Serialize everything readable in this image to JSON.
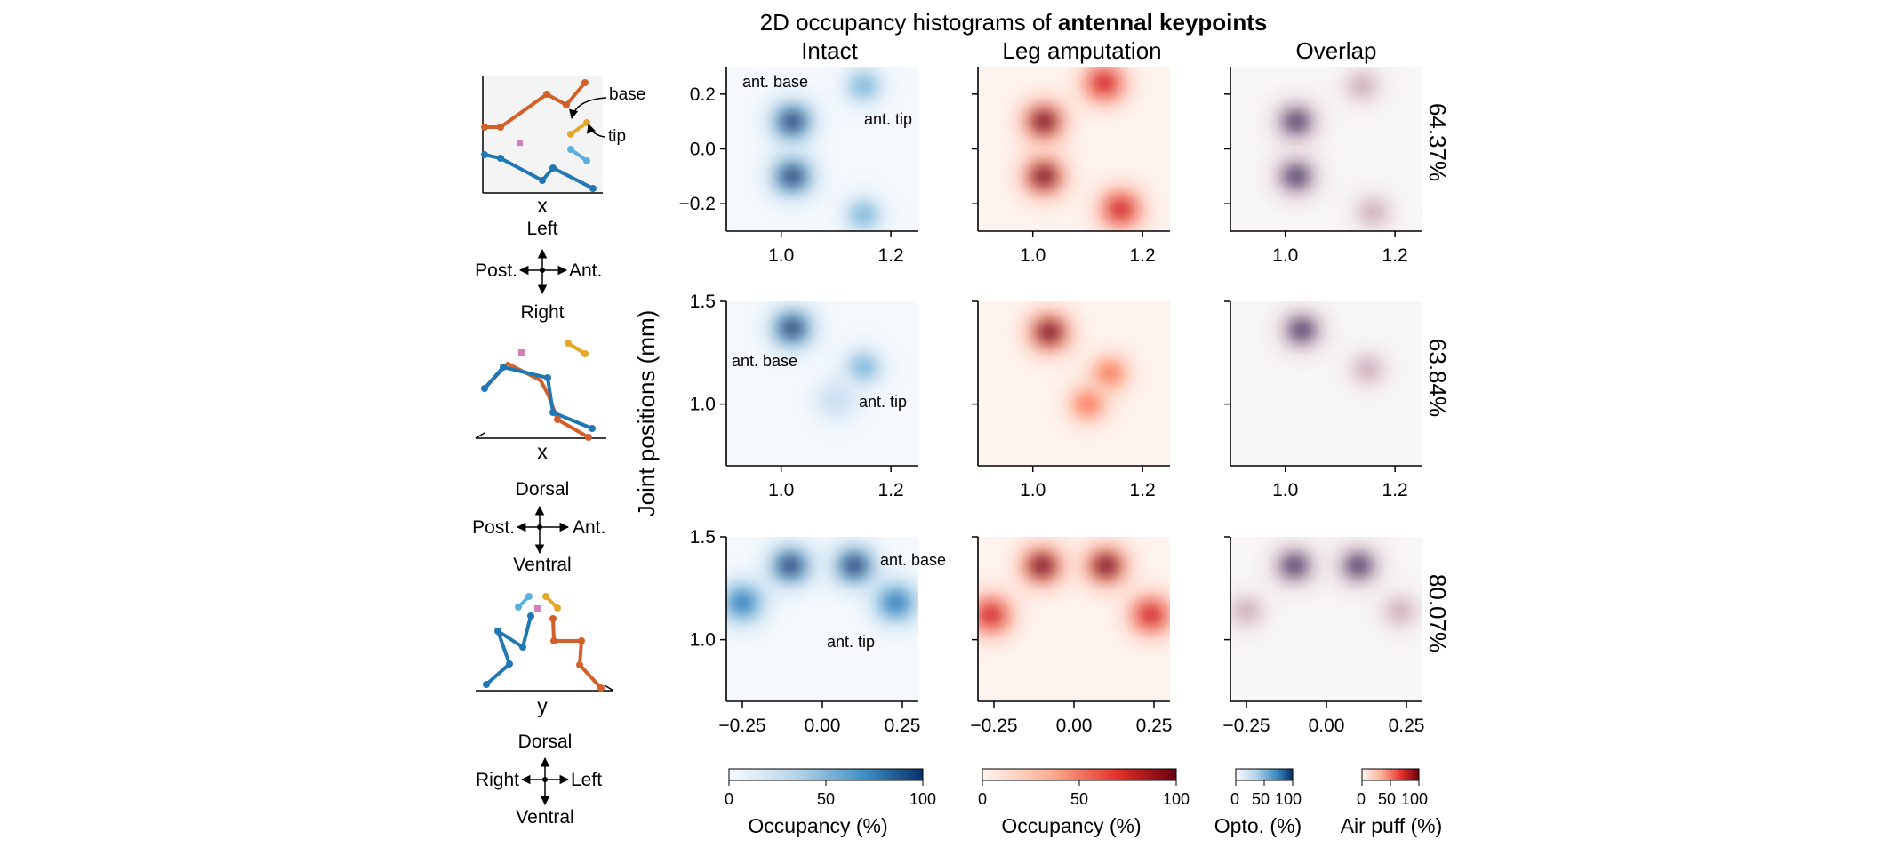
{
  "title": {
    "prefix": "2D occupancy histograms of ",
    "bold": "antennal keypoints"
  },
  "column_titles": [
    "Intact",
    "Leg amputation",
    "Overlap"
  ],
  "ylabel": "Joint positions (mm)",
  "row_percents": [
    "64.37%",
    "63.84%",
    "80.07%"
  ],
  "colorbars": [
    {
      "label": "Occupancy (%)",
      "ticks": [
        "0",
        "50",
        "100"
      ],
      "cmap": "blue"
    },
    {
      "label": "Occupancy (%)",
      "ticks": [
        "0",
        "50",
        "100"
      ],
      "cmap": "red"
    },
    {
      "label": "Opto. (%)",
      "ticks": [
        "0",
        "50",
        "100"
      ],
      "cmap": "blue"
    },
    {
      "label": "Air puff (%)",
      "ticks": [
        "0",
        "50",
        "100"
      ],
      "cmap": "red"
    }
  ],
  "annotations": {
    "row1": [
      "ant. base",
      "ant. tip"
    ],
    "row2": [
      "ant. base",
      "ant. tip"
    ],
    "row3": [
      "ant. base",
      "ant. tip"
    ]
  },
  "schematics": [
    {
      "axis_label": "x",
      "labels": {
        "base": "base",
        "tip": "tip"
      },
      "compass": {
        "top": "Left",
        "bottom": "Right",
        "left": "Post.",
        "right": "Ant."
      }
    },
    {
      "axis_label": "x",
      "compass": {
        "top": "Dorsal",
        "bottom": "Ventral",
        "left": "Post.",
        "right": "Ant."
      }
    },
    {
      "axis_label": "y",
      "compass": {
        "top": "Dorsal",
        "bottom": "Ventral",
        "left": "Right",
        "right": "Left"
      }
    }
  ],
  "colors": {
    "blue": "#1f77b4",
    "orange": "#d2602b",
    "light_blue": "#5ab1e0",
    "gold": "#e6a82a",
    "pink": "#d47fb8",
    "panel_bg": "#f4f4f4"
  },
  "chart_data": [
    {
      "type": "heatmap",
      "name": "Intact, row 1",
      "xlim": [
        0.9,
        1.25
      ],
      "ylim": [
        -0.3,
        0.3
      ],
      "xticks": [
        "1.0",
        "1.2"
      ],
      "yticks": [
        "0.2",
        "0.0",
        "−0.2"
      ],
      "cmap": "Blues",
      "blobs": [
        {
          "x": 1.02,
          "y": 0.1,
          "value": 100
        },
        {
          "x": 1.02,
          "y": -0.1,
          "value": 100
        },
        {
          "x": 1.15,
          "y": 0.23,
          "value": 45
        },
        {
          "x": 1.15,
          "y": -0.24,
          "value": 45
        }
      ]
    },
    {
      "type": "heatmap",
      "name": "Leg amputation, row 1",
      "xlim": [
        0.9,
        1.25
      ],
      "ylim": [
        -0.3,
        0.3
      ],
      "xticks": [
        "1.0",
        "1.2"
      ],
      "cmap": "Reds",
      "blobs": [
        {
          "x": 1.02,
          "y": 0.1,
          "value": 100
        },
        {
          "x": 1.02,
          "y": -0.1,
          "value": 100
        },
        {
          "x": 1.13,
          "y": 0.24,
          "value": 75
        },
        {
          "x": 1.16,
          "y": -0.22,
          "value": 75
        }
      ]
    },
    {
      "type": "heatmap",
      "name": "Overlap, row 1",
      "xlim": [
        0.9,
        1.25
      ],
      "ylim": [
        -0.3,
        0.3
      ],
      "xticks": [
        "1.0",
        "1.2"
      ],
      "percent": "64.37%",
      "blobs": [
        {
          "x": 1.02,
          "y": 0.1,
          "value": 80
        },
        {
          "x": 1.02,
          "y": -0.1,
          "value": 80
        },
        {
          "x": 1.14,
          "y": 0.23,
          "value": 40
        },
        {
          "x": 1.16,
          "y": -0.23,
          "value": 40
        }
      ]
    },
    {
      "type": "heatmap",
      "name": "Intact, row 2",
      "xlim": [
        0.9,
        1.25
      ],
      "ylim": [
        0.7,
        1.5
      ],
      "xticks": [
        "1.0",
        "1.2"
      ],
      "yticks": [
        "1.5",
        "1.0"
      ],
      "cmap": "Blues",
      "blobs": [
        {
          "x": 1.02,
          "y": 1.37,
          "value": 100
        },
        {
          "x": 1.15,
          "y": 1.18,
          "value": 35
        },
        {
          "x": 1.1,
          "y": 1.02,
          "value": 20
        }
      ]
    },
    {
      "type": "heatmap",
      "name": "Leg amputation, row 2",
      "xlim": [
        0.9,
        1.25
      ],
      "ylim": [
        0.7,
        1.5
      ],
      "xticks": [
        "1.0",
        "1.2"
      ],
      "cmap": "Reds",
      "blobs": [
        {
          "x": 1.03,
          "y": 1.35,
          "value": 100
        },
        {
          "x": 1.14,
          "y": 1.15,
          "value": 45
        },
        {
          "x": 1.1,
          "y": 1.0,
          "value": 30
        }
      ]
    },
    {
      "type": "heatmap",
      "name": "Overlap, row 2",
      "xlim": [
        0.9,
        1.25
      ],
      "ylim": [
        0.7,
        1.5
      ],
      "xticks": [
        "1.0",
        "1.2"
      ],
      "percent": "63.84%",
      "blobs": [
        {
          "x": 1.03,
          "y": 1.36,
          "value": 80
        },
        {
          "x": 1.15,
          "y": 1.17,
          "value": 30
        }
      ]
    },
    {
      "type": "heatmap",
      "name": "Intact, row 3",
      "xlim": [
        -0.3,
        0.3
      ],
      "ylim": [
        0.7,
        1.5
      ],
      "xticks": [
        "−0.25",
        "0.00",
        "0.25"
      ],
      "yticks": [
        "1.5",
        "1.0"
      ],
      "cmap": "Blues",
      "blobs": [
        {
          "x": -0.1,
          "y": 1.36,
          "value": 100
        },
        {
          "x": 0.1,
          "y": 1.36,
          "value": 100
        },
        {
          "x": -0.25,
          "y": 1.18,
          "value": 60
        },
        {
          "x": 0.23,
          "y": 1.18,
          "value": 60
        }
      ]
    },
    {
      "type": "heatmap",
      "name": "Leg amputation, row 3",
      "xlim": [
        -0.3,
        0.3
      ],
      "ylim": [
        0.7,
        1.5
      ],
      "xticks": [
        "−0.25",
        "0.00",
        "0.25"
      ],
      "cmap": "Reds",
      "blobs": [
        {
          "x": -0.1,
          "y": 1.36,
          "value": 100
        },
        {
          "x": 0.1,
          "y": 1.36,
          "value": 100
        },
        {
          "x": -0.26,
          "y": 1.12,
          "value": 75
        },
        {
          "x": 0.24,
          "y": 1.12,
          "value": 75
        }
      ]
    },
    {
      "type": "heatmap",
      "name": "Overlap, row 3",
      "xlim": [
        -0.3,
        0.3
      ],
      "ylim": [
        0.7,
        1.5
      ],
      "xticks": [
        "−0.25",
        "0.00",
        "0.25"
      ],
      "percent": "80.07%",
      "blobs": [
        {
          "x": -0.1,
          "y": 1.36,
          "value": 80
        },
        {
          "x": 0.1,
          "y": 1.36,
          "value": 80
        },
        {
          "x": -0.25,
          "y": 1.14,
          "value": 45
        },
        {
          "x": 0.23,
          "y": 1.14,
          "value": 45
        }
      ]
    }
  ]
}
